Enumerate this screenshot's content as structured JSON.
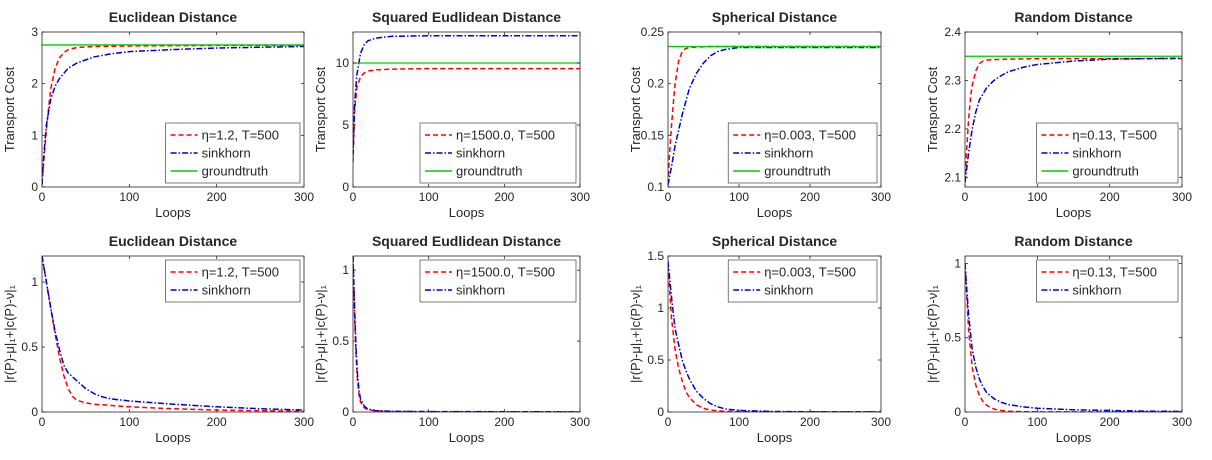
{
  "colors": {
    "greedy": "#ff0000",
    "sinkhorn": "#0000cc",
    "groundtruth": "#00cc00",
    "axis": "#262626"
  },
  "chart_data": [
    {
      "type": "line",
      "title": "Euclidean Distance",
      "xlabel": "Loops",
      "ylabel": "Transport Cost",
      "xlim": [
        0,
        300
      ],
      "ylim": [
        0,
        3
      ],
      "xticks": [
        0,
        100,
        200,
        300
      ],
      "yticks": [
        0,
        1,
        2,
        3
      ],
      "legend_position": "bottom-right",
      "series": [
        {
          "name": "η=1.2, T=500",
          "style": "dashed",
          "color": "#ff0000",
          "x": [
            0,
            2,
            5,
            8,
            10,
            15,
            20,
            25,
            30,
            40,
            60,
            100,
            200,
            300
          ],
          "y": [
            0.05,
            0.5,
            1.1,
            1.6,
            1.9,
            2.3,
            2.5,
            2.6,
            2.66,
            2.7,
            2.72,
            2.73,
            2.74,
            2.74
          ]
        },
        {
          "name": "sinkhorn",
          "style": "dashdot",
          "color": "#0000cc",
          "x": [
            0,
            2,
            5,
            10,
            15,
            20,
            30,
            40,
            60,
            80,
            100,
            150,
            200,
            300
          ],
          "y": [
            0.05,
            0.6,
            1.2,
            1.7,
            1.95,
            2.1,
            2.3,
            2.4,
            2.52,
            2.58,
            2.62,
            2.66,
            2.69,
            2.72
          ]
        },
        {
          "name": "groundtruth",
          "style": "solid",
          "color": "#00cc00",
          "x": [
            0,
            300
          ],
          "y": [
            2.75,
            2.75
          ]
        }
      ]
    },
    {
      "type": "line",
      "title": "Squared Eudlidean Distance",
      "xlabel": "Loops",
      "ylabel": "Transport Cost",
      "xlim": [
        0,
        300
      ],
      "ylim": [
        0,
        12.5
      ],
      "xticks": [
        0,
        100,
        200,
        300
      ],
      "yticks": [
        0,
        5,
        10
      ],
      "legend_position": "bottom-right",
      "series": [
        {
          "name": "η=1500.0, T=500",
          "style": "dashed",
          "color": "#ff0000",
          "x": [
            0,
            2,
            5,
            10,
            15,
            20,
            30,
            50,
            100,
            200,
            300
          ],
          "y": [
            2.0,
            6.0,
            8.0,
            8.9,
            9.2,
            9.35,
            9.45,
            9.5,
            9.55,
            9.55,
            9.55
          ]
        },
        {
          "name": "sinkhorn",
          "style": "dashdot",
          "color": "#0000cc",
          "x": [
            0,
            2,
            5,
            10,
            15,
            20,
            30,
            50,
            100,
            200,
            300
          ],
          "y": [
            2.5,
            6.5,
            9.0,
            10.8,
            11.5,
            11.8,
            12.0,
            12.15,
            12.2,
            12.2,
            12.2
          ]
        },
        {
          "name": "groundtruth",
          "style": "solid",
          "color": "#00cc00",
          "x": [
            0,
            300
          ],
          "y": [
            10.0,
            10.0
          ]
        }
      ]
    },
    {
      "type": "line",
      "title": "Spherical Distance",
      "xlabel": "Loops",
      "ylabel": "Transport Cost",
      "xlim": [
        0,
        300
      ],
      "ylim": [
        0.1,
        0.25
      ],
      "xticks": [
        0,
        100,
        200,
        300
      ],
      "yticks": [
        0.1,
        0.15,
        0.2,
        0.25
      ],
      "legend_position": "bottom-right",
      "series": [
        {
          "name": "η=0.003, T=500",
          "style": "dashed",
          "color": "#ff0000",
          "x": [
            0,
            2,
            5,
            8,
            10,
            15,
            20,
            25,
            30,
            40,
            60,
            100,
            200,
            300
          ],
          "y": [
            0.103,
            0.13,
            0.16,
            0.185,
            0.2,
            0.222,
            0.231,
            0.234,
            0.235,
            0.2355,
            0.236,
            0.236,
            0.236,
            0.236
          ]
        },
        {
          "name": "sinkhorn",
          "style": "dashdot",
          "color": "#0000cc",
          "x": [
            0,
            5,
            10,
            20,
            30,
            40,
            50,
            60,
            70,
            80,
            100,
            150,
            200,
            300
          ],
          "y": [
            0.102,
            0.12,
            0.14,
            0.17,
            0.195,
            0.21,
            0.22,
            0.227,
            0.231,
            0.233,
            0.235,
            0.235,
            0.235,
            0.235
          ]
        },
        {
          "name": "groundtruth",
          "style": "solid",
          "color": "#00cc00",
          "x": [
            0,
            300
          ],
          "y": [
            0.236,
            0.236
          ]
        }
      ]
    },
    {
      "type": "line",
      "title": "Random Distance",
      "xlabel": "Loops",
      "ylabel": "Transport Cost",
      "xlim": [
        0,
        300
      ],
      "ylim": [
        2.08,
        2.4
      ],
      "xticks": [
        0,
        100,
        200,
        300
      ],
      "yticks": [
        2.1,
        2.2,
        2.3,
        2.4
      ],
      "legend_position": "bottom-right",
      "series": [
        {
          "name": "η=0.13, T=500",
          "style": "dashed",
          "color": "#ff0000",
          "x": [
            0,
            2,
            5,
            8,
            10,
            15,
            20,
            25,
            30,
            40,
            60,
            100,
            200,
            300
          ],
          "y": [
            2.09,
            2.15,
            2.22,
            2.27,
            2.29,
            2.32,
            2.335,
            2.34,
            2.342,
            2.343,
            2.344,
            2.345,
            2.345,
            2.345
          ]
        },
        {
          "name": "sinkhorn",
          "style": "dashdot",
          "color": "#0000cc",
          "x": [
            0,
            5,
            10,
            15,
            20,
            30,
            40,
            50,
            60,
            80,
            100,
            150,
            200,
            300
          ],
          "y": [
            2.09,
            2.15,
            2.2,
            2.235,
            2.26,
            2.285,
            2.3,
            2.31,
            2.318,
            2.327,
            2.333,
            2.34,
            2.344,
            2.346
          ]
        },
        {
          "name": "groundtruth",
          "style": "solid",
          "color": "#00cc00",
          "x": [
            0,
            300
          ],
          "y": [
            2.35,
            2.35
          ]
        }
      ]
    },
    {
      "type": "line",
      "title": "Euclidean Distance",
      "xlabel": "Loops",
      "ylabel": "|r(P)-μ|₁+|c(P)-ν|₁",
      "xlim": [
        0,
        300
      ],
      "ylim": [
        0,
        1.2
      ],
      "xticks": [
        0,
        100,
        200,
        300
      ],
      "yticks": [
        0,
        0.5,
        1
      ],
      "legend_position": "top-right",
      "series": [
        {
          "name": "η=1.2, T=500",
          "style": "dashed",
          "color": "#ff0000",
          "x": [
            0,
            5,
            10,
            15,
            20,
            25,
            30,
            35,
            40,
            50,
            60,
            80,
            100,
            150,
            200,
            300
          ],
          "y": [
            1.2,
            1.0,
            0.8,
            0.6,
            0.42,
            0.28,
            0.18,
            0.12,
            0.09,
            0.07,
            0.06,
            0.05,
            0.04,
            0.025,
            0.015,
            0.005
          ]
        },
        {
          "name": "sinkhorn",
          "style": "dashdot",
          "color": "#0000cc",
          "x": [
            0,
            5,
            10,
            15,
            20,
            25,
            30,
            40,
            50,
            60,
            70,
            80,
            100,
            150,
            200,
            250,
            300
          ],
          "y": [
            1.2,
            1.0,
            0.8,
            0.62,
            0.48,
            0.36,
            0.3,
            0.24,
            0.18,
            0.14,
            0.115,
            0.1,
            0.085,
            0.06,
            0.04,
            0.025,
            0.015
          ]
        }
      ]
    },
    {
      "type": "line",
      "title": "Squared Eudlidean Distance",
      "xlabel": "Loops",
      "ylabel": "|r(P)-μ|₁+|c(P)-ν|₁",
      "xlim": [
        0,
        300
      ],
      "ylim": [
        0,
        1.1
      ],
      "xticks": [
        0,
        100,
        200,
        300
      ],
      "yticks": [
        0,
        0.5,
        1
      ],
      "legend_position": "top-right",
      "series": [
        {
          "name": "η=1500.0, T=500",
          "style": "dashed",
          "color": "#ff0000",
          "x": [
            0,
            2,
            4,
            6,
            8,
            10,
            15,
            20,
            30,
            50,
            100,
            200,
            300
          ],
          "y": [
            1.1,
            0.7,
            0.4,
            0.22,
            0.12,
            0.07,
            0.03,
            0.015,
            0.008,
            0.004,
            0.002,
            0.001,
            0.001
          ]
        },
        {
          "name": "sinkhorn",
          "style": "dashdot",
          "color": "#0000cc",
          "x": [
            0,
            2,
            4,
            6,
            8,
            10,
            15,
            20,
            30,
            50,
            100,
            200,
            300
          ],
          "y": [
            1.1,
            0.75,
            0.45,
            0.26,
            0.15,
            0.09,
            0.04,
            0.02,
            0.01,
            0.005,
            0.003,
            0.002,
            0.001
          ]
        }
      ]
    },
    {
      "type": "line",
      "title": "Spherical Distance",
      "xlabel": "Loops",
      "ylabel": "|r(P)-μ|₁+|c(P)-ν|₁",
      "xlim": [
        0,
        300
      ],
      "ylim": [
        0,
        1.5
      ],
      "xticks": [
        0,
        100,
        200,
        300
      ],
      "yticks": [
        0,
        0.5,
        1,
        1.5
      ],
      "legend_position": "top-right",
      "series": [
        {
          "name": "η=0.003, T=500",
          "style": "dashed",
          "color": "#ff0000",
          "x": [
            0,
            5,
            10,
            15,
            20,
            25,
            30,
            40,
            50,
            60,
            80,
            100,
            150,
            200,
            300
          ],
          "y": [
            1.4,
            0.9,
            0.6,
            0.42,
            0.3,
            0.2,
            0.14,
            0.07,
            0.035,
            0.018,
            0.006,
            0.003,
            0.001,
            0.001,
            0.001
          ]
        },
        {
          "name": "sinkhorn",
          "style": "dashdot",
          "color": "#0000cc",
          "x": [
            0,
            5,
            10,
            15,
            20,
            25,
            30,
            40,
            50,
            60,
            70,
            80,
            100,
            150,
            200,
            300
          ],
          "y": [
            1.45,
            1.1,
            0.8,
            0.65,
            0.5,
            0.4,
            0.32,
            0.2,
            0.13,
            0.08,
            0.05,
            0.03,
            0.015,
            0.005,
            0.002,
            0.001
          ]
        }
      ]
    },
    {
      "type": "line",
      "title": "Random Distance",
      "xlabel": "Loops",
      "ylabel": "|r(P)-μ|₁+|c(P)-ν|₁",
      "xlim": [
        0,
        300
      ],
      "ylim": [
        0,
        1.05
      ],
      "xticks": [
        0,
        100,
        200,
        300
      ],
      "yticks": [
        0,
        0.5,
        1
      ],
      "legend_position": "top-right",
      "series": [
        {
          "name": "η=0.13, T=500",
          "style": "dashed",
          "color": "#ff0000",
          "x": [
            0,
            5,
            10,
            15,
            20,
            25,
            30,
            40,
            50,
            60,
            80,
            100,
            150,
            200,
            300
          ],
          "y": [
            1.0,
            0.55,
            0.3,
            0.18,
            0.11,
            0.07,
            0.045,
            0.02,
            0.01,
            0.005,
            0.002,
            0.001,
            0.001,
            0.001,
            0.001
          ]
        },
        {
          "name": "sinkhorn",
          "style": "dashdot",
          "color": "#0000cc",
          "x": [
            0,
            5,
            10,
            15,
            20,
            25,
            30,
            40,
            50,
            60,
            80,
            100,
            150,
            200,
            250,
            300
          ],
          "y": [
            1.0,
            0.65,
            0.42,
            0.3,
            0.22,
            0.17,
            0.13,
            0.09,
            0.065,
            0.05,
            0.035,
            0.025,
            0.015,
            0.01,
            0.006,
            0.004
          ]
        }
      ]
    }
  ]
}
